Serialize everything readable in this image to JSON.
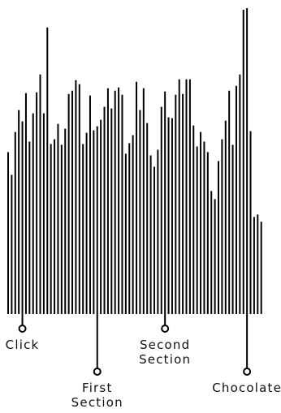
{
  "chart_data": {
    "type": "bar",
    "baseline": 0,
    "y_max": 380,
    "values": [
      200,
      172,
      225,
      252,
      238,
      273,
      213,
      248,
      274,
      296,
      248,
      354,
      210,
      216,
      235,
      209,
      229,
      272,
      276,
      289,
      284,
      210,
      224,
      270,
      227,
      232,
      240,
      256,
      279,
      254,
      276,
      280,
      271,
      198,
      211,
      221,
      287,
      252,
      279,
      236,
      196,
      182,
      203,
      256,
      275,
      243,
      242,
      271,
      290,
      272,
      290,
      290,
      233,
      207,
      225,
      213,
      200,
      152,
      142,
      189,
      216,
      239,
      276,
      209,
      282,
      296,
      376,
      378,
      226,
      120,
      123,
      114
    ],
    "annotations": [
      {
        "label": "Click",
        "bar_index": 4,
        "side": "below-short"
      },
      {
        "label": "First\nSection",
        "bar_index": 25,
        "side": "below-long"
      },
      {
        "label": "Second\nSection",
        "bar_index": 44,
        "side": "below-short"
      },
      {
        "label": "Chocolate",
        "bar_index": 67,
        "side": "below-long"
      }
    ],
    "colors": {
      "bars": "#000000",
      "marker_fill": "#ffffff"
    }
  }
}
